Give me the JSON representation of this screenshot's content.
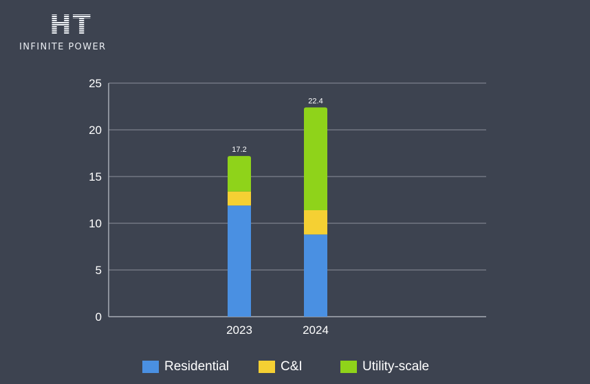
{
  "logo": {
    "mark": "HT",
    "text": "INFINITE POWER"
  },
  "chart_data": {
    "type": "bar",
    "stacked": true,
    "categories": [
      "2023",
      "2024"
    ],
    "series": [
      {
        "name": "Residential",
        "color": "#4a90e2",
        "values": [
          11.9,
          8.8
        ]
      },
      {
        "name": "C&I",
        "color": "#f5d033",
        "values": [
          1.5,
          2.6
        ]
      },
      {
        "name": "Utility-scale",
        "color": "#8fd31a",
        "values": [
          3.8,
          11.0
        ]
      }
    ],
    "totals": [
      17.2,
      22.4
    ],
    "total_labels": [
      "17.2",
      "22.4"
    ],
    "ylim": [
      0,
      25
    ],
    "yticks": [
      0,
      5,
      10,
      15,
      20,
      25
    ],
    "title": "",
    "xlabel": "",
    "ylabel": "",
    "grid": true,
    "legend_position": "bottom"
  }
}
